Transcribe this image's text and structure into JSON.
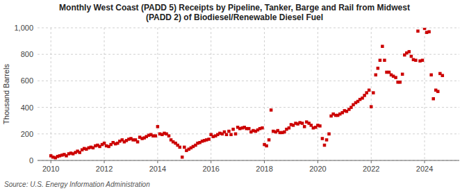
{
  "chart_data": {
    "type": "scatter",
    "title": "Monthly West Coast (PADD 5) Receipts by Pipeline, Tanker, Barge and Rail from Midwest\n(PADD 2) of Biodiesel/Renewable Diesel Fuel",
    "ylabel": "Thousand Barrels",
    "source": "Source: U.S. Energy Information Administration",
    "color": "#cc0000",
    "marker": "square",
    "grid": true,
    "xlim": [
      2009.5,
      2025.3
    ],
    "xticks": [
      2010,
      2012,
      2014,
      2016,
      2018,
      2020,
      2022,
      2024
    ],
    "ylim": [
      0,
      1000
    ],
    "yticks": [
      0,
      200,
      400,
      600,
      800,
      {
        "value": 1000,
        "label": "1,000"
      }
    ],
    "x": [
      2010.0,
      2010.08,
      2010.17,
      2010.25,
      2010.33,
      2010.42,
      2010.5,
      2010.58,
      2010.67,
      2010.75,
      2010.83,
      2010.92,
      2011.0,
      2011.08,
      2011.17,
      2011.25,
      2011.33,
      2011.42,
      2011.5,
      2011.58,
      2011.67,
      2011.75,
      2011.83,
      2011.92,
      2012.0,
      2012.08,
      2012.17,
      2012.25,
      2012.33,
      2012.42,
      2012.5,
      2012.58,
      2012.67,
      2012.75,
      2012.83,
      2012.92,
      2013.0,
      2013.08,
      2013.17,
      2013.25,
      2013.33,
      2013.42,
      2013.5,
      2013.58,
      2013.67,
      2013.75,
      2013.83,
      2013.92,
      2014.0,
      2014.08,
      2014.17,
      2014.25,
      2014.33,
      2014.42,
      2014.5,
      2014.58,
      2014.67,
      2014.75,
      2014.83,
      2014.92,
      2015.0,
      2015.08,
      2015.17,
      2015.25,
      2015.33,
      2015.42,
      2015.5,
      2015.58,
      2015.67,
      2015.75,
      2015.83,
      2015.92,
      2016.0,
      2016.08,
      2016.17,
      2016.25,
      2016.33,
      2016.42,
      2016.5,
      2016.58,
      2016.67,
      2016.75,
      2016.83,
      2016.92,
      2017.0,
      2017.08,
      2017.17,
      2017.25,
      2017.33,
      2017.42,
      2017.5,
      2017.58,
      2017.67,
      2017.75,
      2017.83,
      2017.92,
      2018.0,
      2018.08,
      2018.17,
      2018.25,
      2018.33,
      2018.42,
      2018.5,
      2018.58,
      2018.67,
      2018.75,
      2018.83,
      2018.92,
      2019.0,
      2019.08,
      2019.17,
      2019.25,
      2019.33,
      2019.42,
      2019.5,
      2019.58,
      2019.67,
      2019.75,
      2019.83,
      2019.92,
      2020.0,
      2020.08,
      2020.17,
      2020.25,
      2020.33,
      2020.42,
      2020.5,
      2020.58,
      2020.67,
      2020.75,
      2020.83,
      2020.92,
      2021.0,
      2021.08,
      2021.17,
      2021.25,
      2021.33,
      2021.42,
      2021.5,
      2021.58,
      2021.67,
      2021.75,
      2021.83,
      2021.92,
      2022.0,
      2022.08,
      2022.17,
      2022.25,
      2022.33,
      2022.42,
      2022.5,
      2022.58,
      2022.67,
      2022.75,
      2022.83,
      2022.92,
      2023.0,
      2023.08,
      2023.17,
      2023.25,
      2023.33,
      2023.42,
      2023.5,
      2023.58,
      2023.67,
      2023.75,
      2023.83,
      2023.92,
      2024.0,
      2024.08,
      2024.17,
      2024.25,
      2024.33,
      2024.42,
      2024.5,
      2024.58,
      2024.67
    ],
    "values": [
      35,
      25,
      20,
      30,
      35,
      40,
      45,
      35,
      50,
      55,
      50,
      60,
      70,
      60,
      80,
      90,
      85,
      95,
      100,
      95,
      110,
      115,
      105,
      120,
      130,
      110,
      105,
      120,
      135,
      125,
      130,
      145,
      155,
      140,
      150,
      160,
      165,
      155,
      155,
      140,
      175,
      165,
      170,
      180,
      190,
      195,
      185,
      185,
      255,
      200,
      195,
      205,
      200,
      185,
      155,
      140,
      130,
      115,
      100,
      25,
      100,
      75,
      85,
      95,
      105,
      115,
      130,
      135,
      145,
      150,
      155,
      160,
      195,
      180,
      185,
      195,
      205,
      200,
      215,
      195,
      220,
      195,
      235,
      200,
      250,
      240,
      245,
      250,
      240,
      240,
      215,
      225,
      220,
      230,
      240,
      245,
      120,
      110,
      155,
      380,
      220,
      215,
      225,
      210,
      210,
      215,
      235,
      245,
      270,
      265,
      280,
      275,
      285,
      280,
      255,
      290,
      280,
      265,
      245,
      250,
      265,
      260,
      165,
      115,
      155,
      200,
      335,
      350,
      340,
      340,
      350,
      360,
      375,
      370,
      385,
      400,
      420,
      435,
      445,
      460,
      470,
      490,
      510,
      530,
      405,
      510,
      645,
      695,
      755,
      860,
      755,
      665,
      665,
      645,
      635,
      625,
      590,
      590,
      650,
      795,
      810,
      820,
      785,
      760,
      755,
      975,
      750,
      755,
      995,
      965,
      970,
      645,
      465,
      530,
      520,
      655,
      640
    ]
  }
}
